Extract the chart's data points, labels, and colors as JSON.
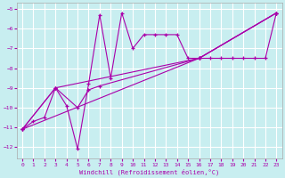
{
  "xlabel": "Windchill (Refroidissement éolien,°C)",
  "background_color": "#c8eef0",
  "grid_color": "#ffffff",
  "line_color": "#aa00aa",
  "xlim": [
    -0.5,
    23.5
  ],
  "ylim": [
    -12.6,
    -4.7
  ],
  "xticks": [
    0,
    1,
    2,
    3,
    4,
    5,
    6,
    7,
    8,
    9,
    10,
    11,
    12,
    13,
    14,
    15,
    16,
    17,
    18,
    19,
    20,
    21,
    22,
    23
  ],
  "yticks": [
    -12,
    -11,
    -10,
    -9,
    -8,
    -7,
    -6,
    -5
  ],
  "series0_x": [
    0,
    1,
    2,
    3,
    4,
    5,
    6,
    7,
    8,
    9,
    10,
    11,
    12,
    13,
    14,
    15,
    16,
    17,
    18,
    19,
    20,
    21,
    22,
    23
  ],
  "series0_y": [
    -11.1,
    -10.7,
    -10.5,
    -9.0,
    -9.9,
    -12.1,
    -8.8,
    -5.3,
    -8.5,
    -5.2,
    -7.0,
    -6.3,
    -6.3,
    -6.3,
    -6.3,
    -7.5,
    -7.5,
    -7.5,
    -7.5,
    -7.5,
    -7.5,
    -7.5,
    -7.5,
    -5.2
  ],
  "series1_x": [
    0,
    3,
    5,
    6,
    7,
    16,
    23
  ],
  "series1_y": [
    -11.1,
    -9.0,
    -10.0,
    -9.1,
    -8.9,
    -7.5,
    -5.2
  ],
  "series2_x": [
    0,
    3,
    16,
    23
  ],
  "series2_y": [
    -11.1,
    -9.0,
    -7.5,
    -5.2
  ],
  "series3_x": [
    0,
    16,
    23
  ],
  "series3_y": [
    -11.1,
    -7.5,
    -5.2
  ]
}
